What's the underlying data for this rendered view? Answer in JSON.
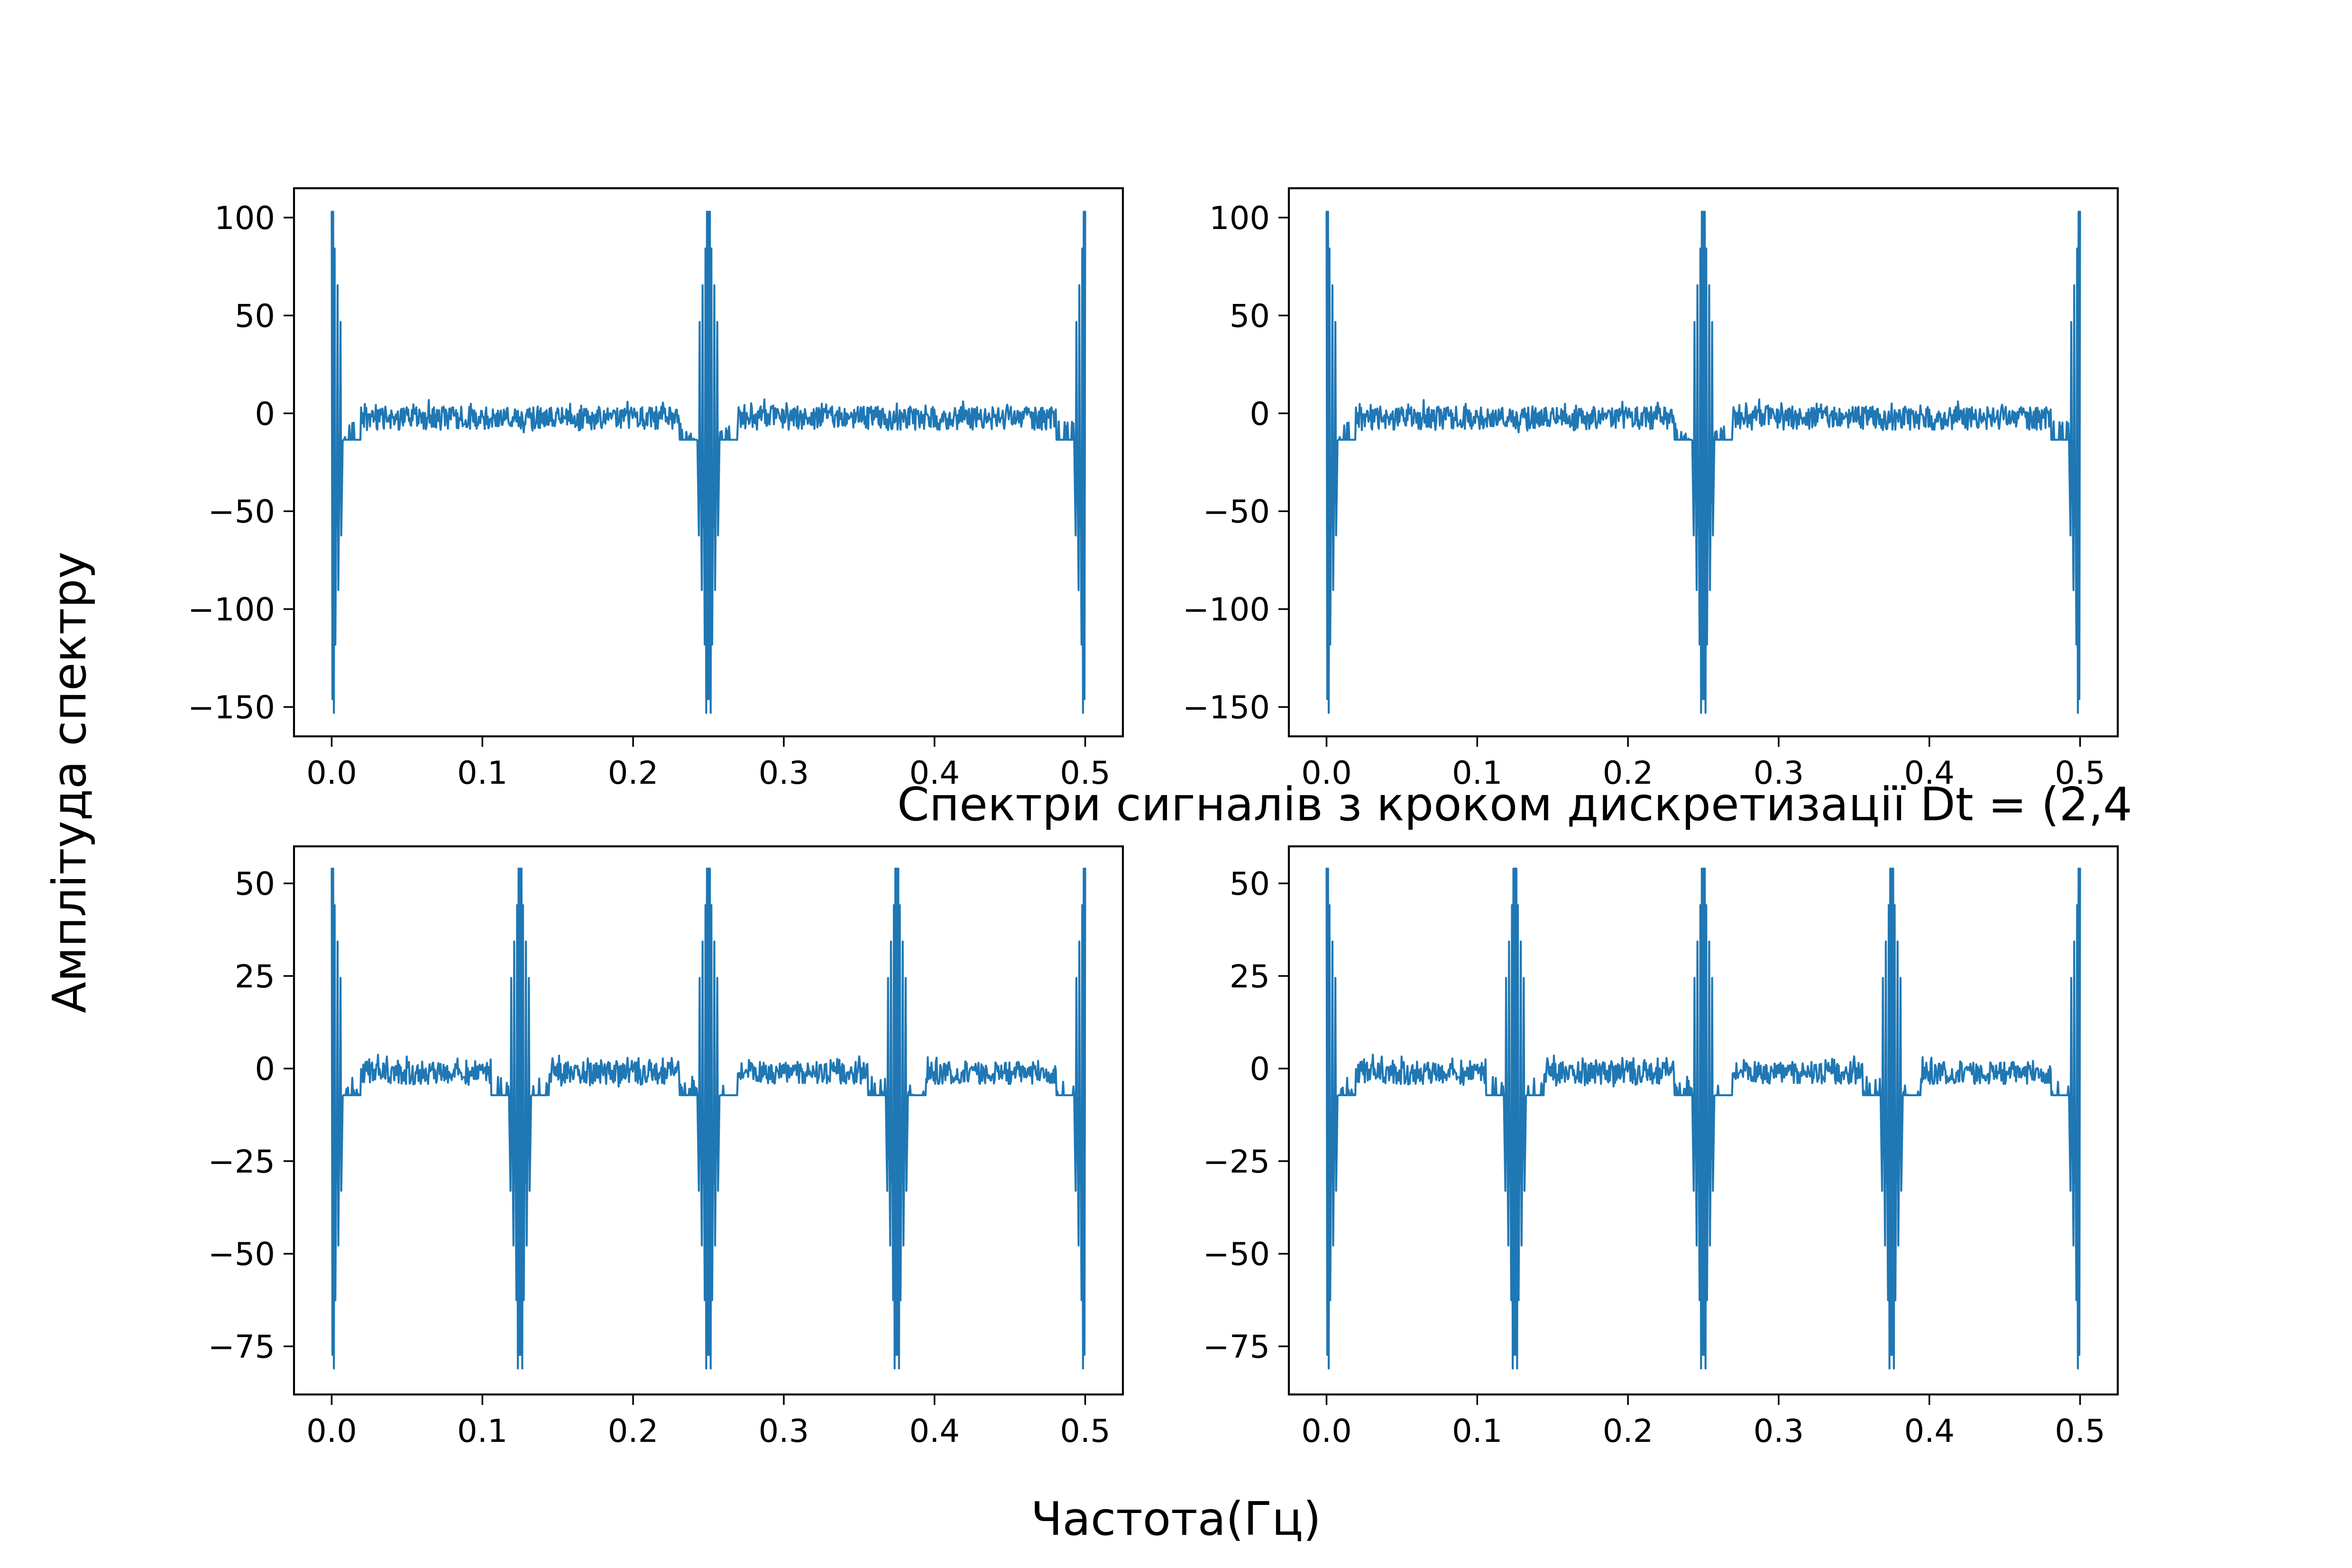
{
  "figure": {
    "xlabel": "Частота(Гц)",
    "ylabel": "Амплітуда спектру",
    "title_overlay": "Спектри сигналів з кроком дискретизації Dt = (2,4"
  },
  "colors": {
    "series": "#1f77b4",
    "axes": "#000000",
    "background": "#ffffff"
  },
  "chart_data": [
    {
      "type": "line",
      "position": "top-left",
      "x_range": [
        0,
        0.5
      ],
      "ylim": [
        -165,
        115
      ],
      "xticks": [
        "0.0",
        "0.1",
        "0.2",
        "0.3",
        "0.4",
        "0.5"
      ],
      "yticks": [
        "100",
        "50",
        "0",
        "−50",
        "−100",
        "−150"
      ],
      "ytick_values": [
        100,
        50,
        0,
        -50,
        -100,
        -150
      ],
      "grid": false,
      "peak_centers": [
        0,
        0.25,
        0.5
      ],
      "peak_max": 103,
      "peak_min": -153,
      "baseline": 0,
      "shoulder_level": -30,
      "noise": 6
    },
    {
      "type": "line",
      "position": "top-right",
      "x_range": [
        0,
        0.5
      ],
      "ylim": [
        -165,
        115
      ],
      "xticks": [
        "0.0",
        "0.1",
        "0.2",
        "0.3",
        "0.4",
        "0.5"
      ],
      "yticks": [
        "100",
        "50",
        "0",
        "−50",
        "−100",
        "−150"
      ],
      "ytick_values": [
        100,
        50,
        0,
        -50,
        -100,
        -150
      ],
      "grid": false,
      "peak_centers": [
        0,
        0.25,
        0.5
      ],
      "peak_max": 103,
      "peak_min": -153,
      "baseline": 0,
      "shoulder_level": -30,
      "noise": 6
    },
    {
      "type": "line",
      "position": "bottom-left",
      "x_range": [
        0,
        0.5
      ],
      "ylim": [
        -88,
        60
      ],
      "xticks": [
        "0.0",
        "0.1",
        "0.2",
        "0.3",
        "0.4",
        "0.5"
      ],
      "yticks": [
        "50",
        "25",
        "0",
        "−25",
        "−50",
        "−75"
      ],
      "ytick_values": [
        50,
        25,
        0,
        -25,
        -50,
        -75
      ],
      "grid": false,
      "peak_centers": [
        0,
        0.125,
        0.25,
        0.375,
        0.5
      ],
      "peak_max": 54,
      "peak_min": -81,
      "baseline": 0,
      "shoulder_level": -16,
      "noise": 3
    },
    {
      "type": "line",
      "position": "bottom-right",
      "x_range": [
        0,
        0.5
      ],
      "ylim": [
        -88,
        60
      ],
      "xticks": [
        "0.0",
        "0.1",
        "0.2",
        "0.3",
        "0.4",
        "0.5"
      ],
      "yticks": [
        "50",
        "25",
        "0",
        "−25",
        "−50",
        "−75"
      ],
      "ytick_values": [
        50,
        25,
        0,
        -25,
        -50,
        -75
      ],
      "grid": false,
      "peak_centers": [
        0,
        0.125,
        0.25,
        0.375,
        0.5
      ],
      "peak_max": 54,
      "peak_min": -81,
      "baseline": 0,
      "shoulder_level": -16,
      "noise": 3
    }
  ]
}
